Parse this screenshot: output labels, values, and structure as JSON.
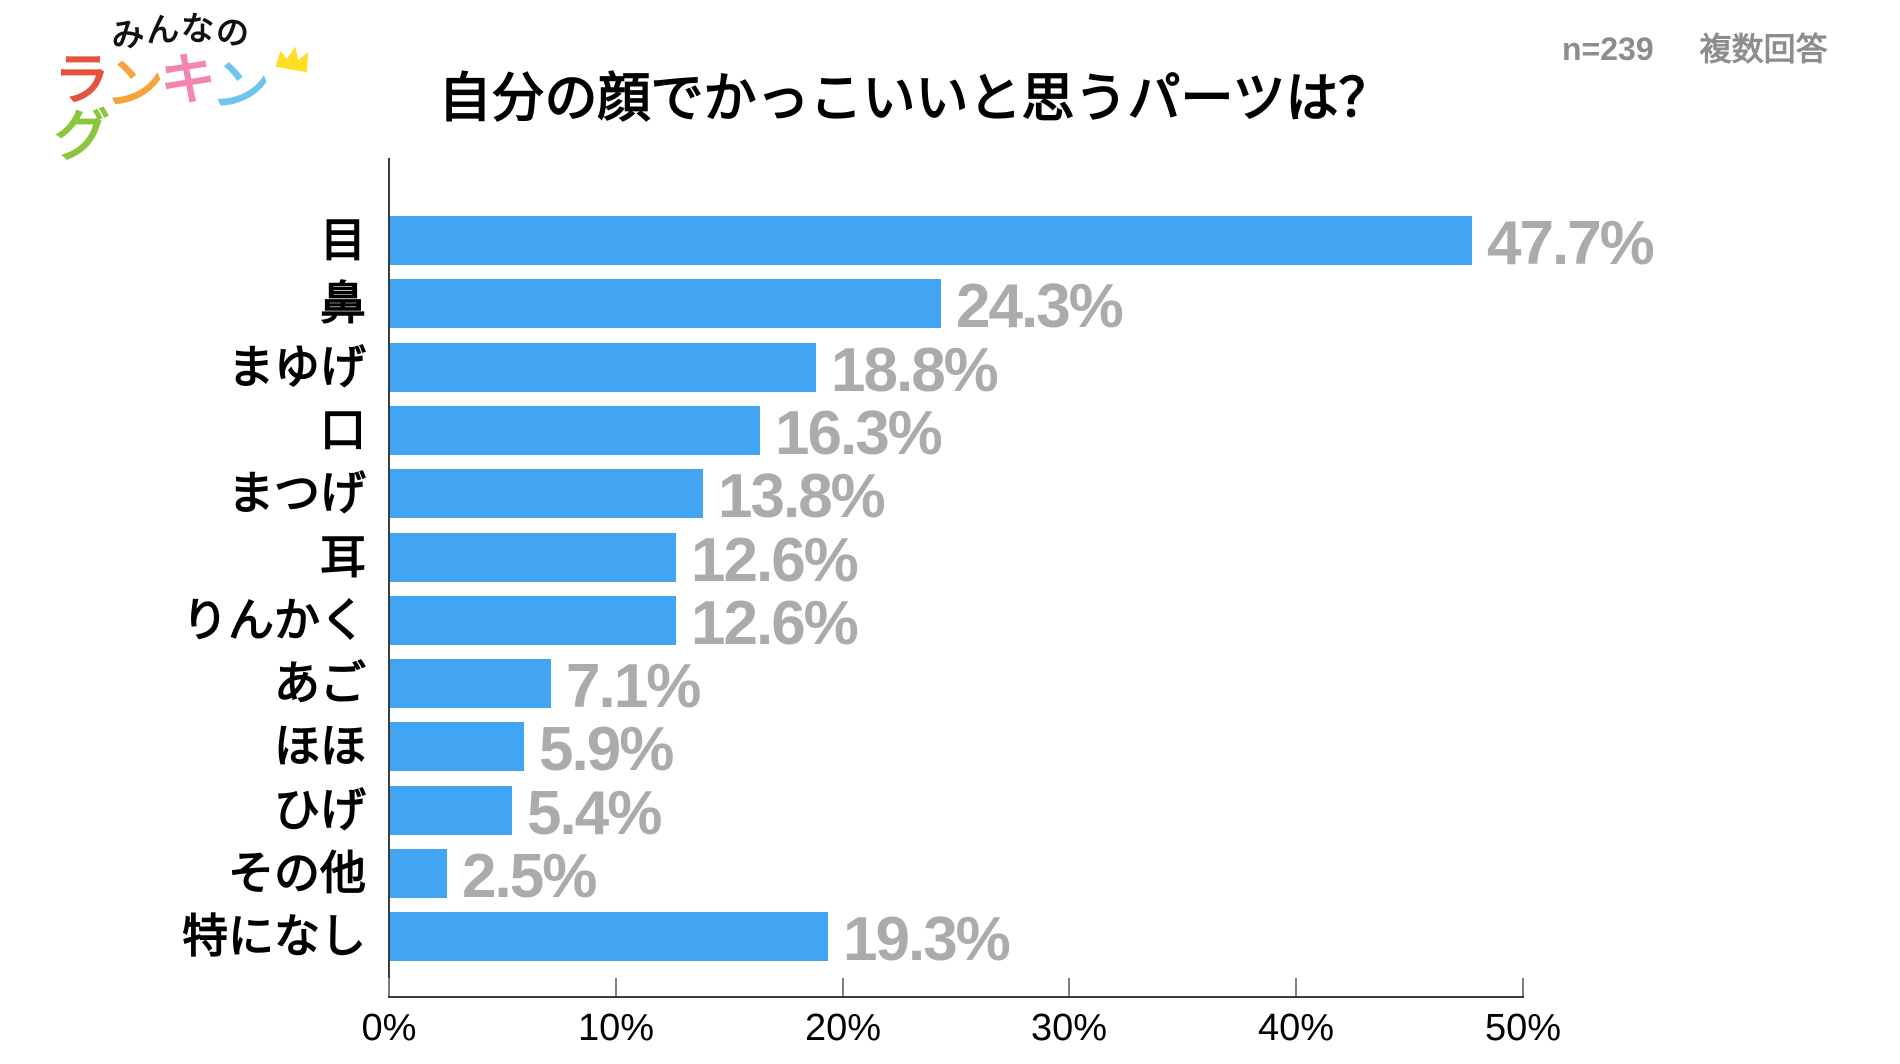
{
  "logo": {
    "top_text": "みんなの",
    "top_color": "#111111",
    "bottom_text": "ランキング",
    "bottom_colors": [
      "#e4533e",
      "#f5a33b",
      "#f285b2",
      "#6ec6ef",
      "#8bc63f"
    ],
    "crown_icon_color": "#ffdf26"
  },
  "header": {
    "title": "自分の顔でかっこいいと思うパーツは？",
    "sample_size": "n=239",
    "answer_type": "複数回答",
    "meta_color": "#8d8d8d"
  },
  "chart_data": {
    "type": "bar",
    "orientation": "horizontal",
    "title": "自分の顔でかっこいいと思うパーツは？",
    "categories": [
      "目",
      "鼻",
      "まゆげ",
      "口",
      "まつげ",
      "耳",
      "りんかく",
      "あご",
      "ほほ",
      "ひげ",
      "その他",
      "特になし"
    ],
    "values": [
      47.7,
      24.3,
      18.8,
      16.3,
      13.8,
      12.6,
      12.6,
      7.1,
      5.9,
      5.4,
      2.5,
      19.3
    ],
    "value_labels": [
      "47.7%",
      "24.3%",
      "18.8%",
      "16.3%",
      "13.8%",
      "12.6%",
      "12.6%",
      "7.1%",
      "5.9%",
      "5.4%",
      "2.5%",
      "19.3%"
    ],
    "x_ticks": [
      "0%",
      "10%",
      "20%",
      "30%",
      "40%",
      "50%"
    ],
    "x_tick_values": [
      0,
      10,
      20,
      30,
      40,
      50
    ],
    "xlim": [
      0,
      50
    ],
    "xlabel": "",
    "ylabel": "",
    "grid": false,
    "legend": "none",
    "sample_note": "n=239",
    "bar_color": "#42a5f3",
    "value_label_color": "#ababab",
    "category_label_color": "#000000",
    "axis_color": "#3c3c3c",
    "tick_color": "#808080"
  }
}
